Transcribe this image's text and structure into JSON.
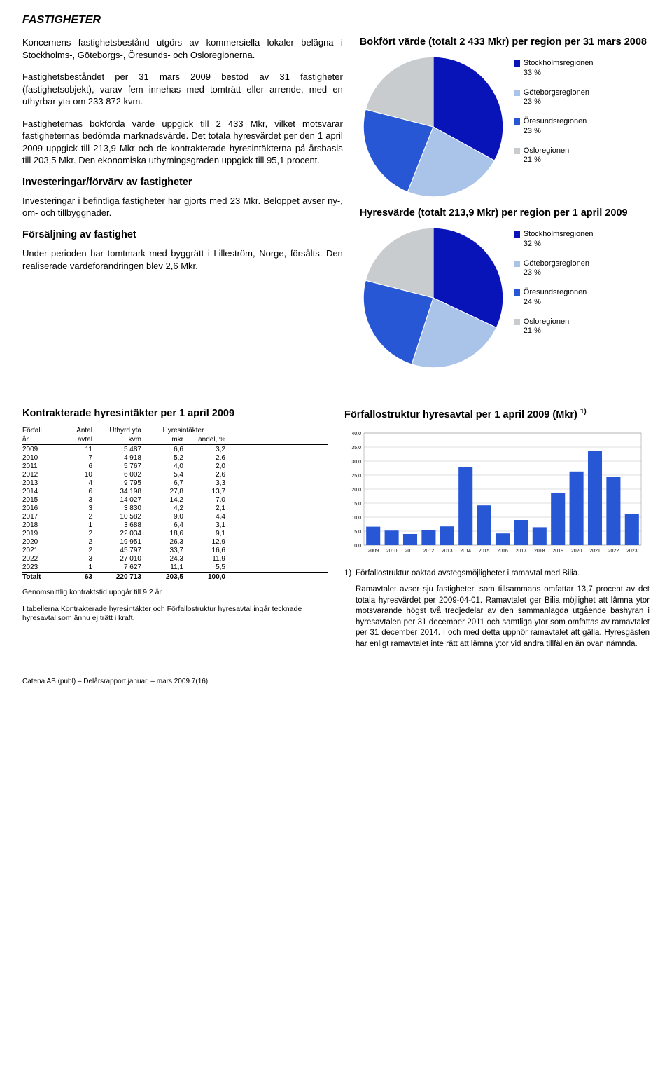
{
  "page": {
    "title": "FASTIGHETER",
    "footer": "Catena AB (publ) – Delårsrapport januari – mars 2009        7(16)"
  },
  "left": {
    "p1": "Koncernens fastighetsbestånd utgörs av kommersiella lokaler belägna i Stockholms-, Göteborgs-, Öresunds- och Osloregionerna.",
    "p2": "Fastighetsbeståndet per 31 mars 2009 bestod av 31 fastigheter (fastighetsobjekt), varav fem innehas med tomträtt eller arrende, med en uthyrbar yta om 233 872 kvm.",
    "p3": "Fastigheternas bokförda värde uppgick till 2 433 Mkr, vilket motsvarar fastigheternas bedömda marknadsvärde. Det totala hyresvärdet per den 1 april 2009 uppgick till 213,9 Mkr och de kontrakterade hyresintäkterna på årsbasis till 203,5 Mkr. Den ekonomiska uthyrningsgraden uppgick till 95,1 procent.",
    "h1": "Investeringar/förvärv av fastigheter",
    "p4": "Investeringar i befintliga fastigheter har gjorts med 23 Mkr. Beloppet avser ny-, om- och tillbyggnader.",
    "h2": "Försäljning av fastighet",
    "p5": "Under perioden har tomtmark med byggrätt i Lilleström, Norge, försålts. Den realiserade värdeförändringen blev 2,6 Mkr."
  },
  "pie1": {
    "title": "Bokfört värde (totalt 2 433 Mkr) per region per 31 mars 2008",
    "slices": [
      {
        "label": "Stockholmsregionen",
        "pct": "33 %",
        "value": 33,
        "color": "#0814b8"
      },
      {
        "label": "Göteborgsregionen",
        "pct": "23 %",
        "value": 23,
        "color": "#a9c3e9"
      },
      {
        "label": "Öresundsregionen",
        "pct": "23 %",
        "value": 23,
        "color": "#2857d6"
      },
      {
        "label": "Osloregionen",
        "pct": "21 %",
        "value": 21,
        "color": "#c9cccf"
      }
    ]
  },
  "pie2": {
    "title": "Hyresvärde (totalt 213,9 Mkr) per region per 1 april 2009",
    "slices": [
      {
        "label": "Stockholmsregionen",
        "pct": "32 %",
        "value": 32,
        "color": "#0814b8"
      },
      {
        "label": "Göteborgsregionen",
        "pct": "23 %",
        "value": 23,
        "color": "#a9c3e9"
      },
      {
        "label": "Öresundsregionen",
        "pct": "24 %",
        "value": 24,
        "color": "#2857d6"
      },
      {
        "label": "Osloregionen",
        "pct": "21 %",
        "value": 21,
        "color": "#c9cccf"
      }
    ]
  },
  "table": {
    "title": "Kontrakterade hyresintäkter per 1 april 2009",
    "head1": [
      "Förfall",
      "Antal",
      "Uthyrd yta",
      "Hyresintäkter",
      ""
    ],
    "head2": [
      "år",
      "avtal",
      "kvm",
      "mkr",
      "andel, %"
    ],
    "rows": [
      [
        "2009",
        "11",
        "5 487",
        "6,6",
        "3,2"
      ],
      [
        "2010",
        "7",
        "4 918",
        "5,2",
        "2,6"
      ],
      [
        "2011",
        "6",
        "5 767",
        "4,0",
        "2,0"
      ],
      [
        "2012",
        "10",
        "6 002",
        "5,4",
        "2,6"
      ],
      [
        "2013",
        "4",
        "9 795",
        "6,7",
        "3,3"
      ],
      [
        "2014",
        "6",
        "34 198",
        "27,8",
        "13,7"
      ],
      [
        "2015",
        "3",
        "14 027",
        "14,2",
        "7,0"
      ],
      [
        "2016",
        "3",
        "3 830",
        "4,2",
        "2,1"
      ],
      [
        "2017",
        "2",
        "10 582",
        "9,0",
        "4,4"
      ],
      [
        "2018",
        "1",
        "3 688",
        "6,4",
        "3,1"
      ],
      [
        "2019",
        "2",
        "22 034",
        "18,6",
        "9,1"
      ],
      [
        "2020",
        "2",
        "19 951",
        "26,3",
        "12,9"
      ],
      [
        "2021",
        "2",
        "45 797",
        "33,7",
        "16,6"
      ],
      [
        "2022",
        "3",
        "27 010",
        "24,3",
        "11,9"
      ],
      [
        "2023",
        "1",
        "7 627",
        "11,1",
        "5,5"
      ]
    ],
    "total": [
      "Totalt",
      "63",
      "220 713",
      "203,5",
      "100,0"
    ],
    "note1": "Genomsnittlig kontraktstid uppgår till 9,2 år",
    "note2": "I tabellerna Kontrakterade hyresintäkter och Förfallostruktur hyresavtal ingår tecknade hyresavtal som ännu ej trätt i kraft."
  },
  "bar": {
    "title": "Förfallostruktur hyresavtal per 1 april 2009 (Mkr)",
    "title_sup": "1)",
    "yticks": [
      "0,0",
      "5,0",
      "10,0",
      "15,0",
      "20,0",
      "25,0",
      "30,0",
      "35,0",
      "40,0"
    ],
    "ymax": 40,
    "color": "#2857d6",
    "data": [
      {
        "year": "2009",
        "v": 6.6
      },
      {
        "year": "2010",
        "v": 5.2
      },
      {
        "year": "2011",
        "v": 4.0
      },
      {
        "year": "2012",
        "v": 5.4
      },
      {
        "year": "2013",
        "v": 6.7
      },
      {
        "year": "2014",
        "v": 27.8
      },
      {
        "year": "2015",
        "v": 14.2
      },
      {
        "year": "2016",
        "v": 4.2
      },
      {
        "year": "2017",
        "v": 9.0
      },
      {
        "year": "2018",
        "v": 6.4
      },
      {
        "year": "2019",
        "v": 18.6
      },
      {
        "year": "2020",
        "v": 26.3
      },
      {
        "year": "2021",
        "v": 33.7
      },
      {
        "year": "2022",
        "v": 24.3
      },
      {
        "year": "2023",
        "v": 11.1
      }
    ],
    "foot_num": "1)",
    "foot1": "Förfallostruktur oaktad avstegsmöjligheter i ramavtal med Bilia.",
    "foot2": "Ramavtalet avser sju fastigheter, som tillsammans omfattar 13,7 procent av det totala hyresvärdet per 2009-04-01. Ramavtalet ger Bilia möjlighet att lämna ytor motsvarande högst två tredjedelar av den sammanlagda utgående bashyran i hyresavtalen per 31 december 2011 och samtliga ytor som omfattas av ramavtalet per 31 december 2014. I och med detta upphör ramavtalet att gälla. Hyresgästen har enligt ramavtalet inte rätt att lämna ytor vid andra tillfällen än ovan nämnda."
  }
}
